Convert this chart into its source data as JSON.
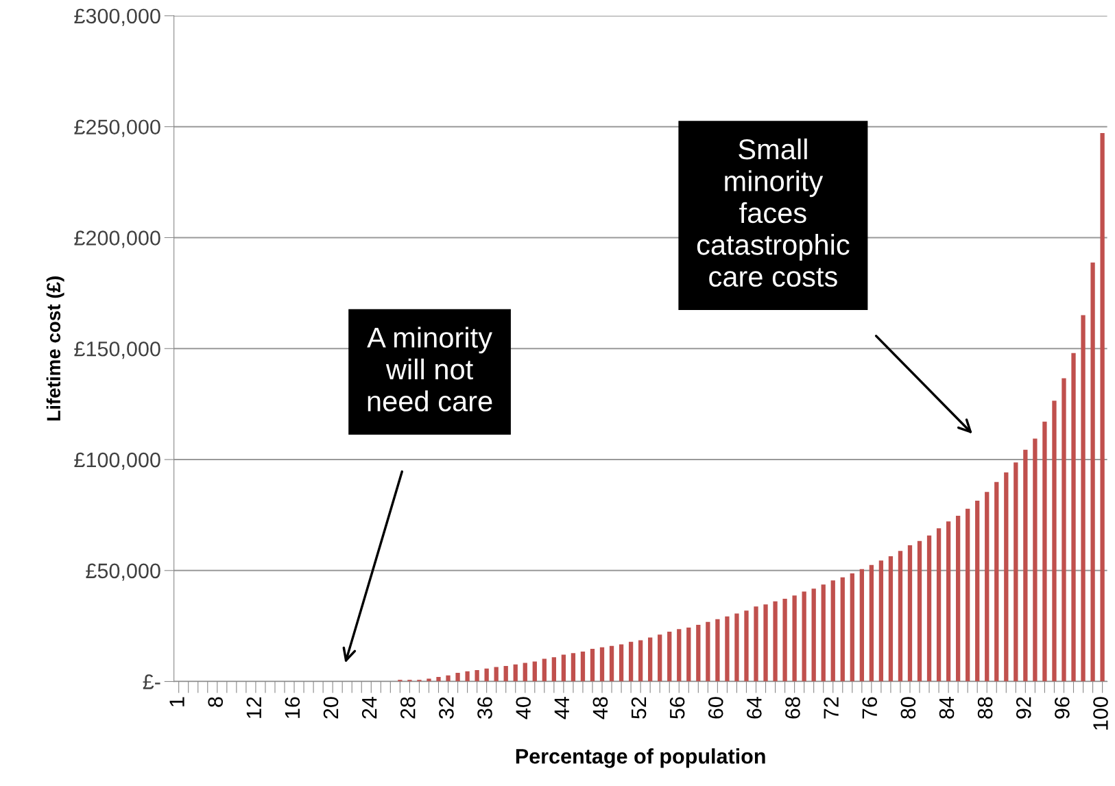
{
  "chart_data": {
    "type": "bar",
    "xlabel": "Percentage of population",
    "ylabel": "Lifetime cost (£)",
    "categories": [
      "1",
      null,
      null,
      null,
      "8",
      null,
      null,
      null,
      "12",
      null,
      null,
      null,
      "16",
      null,
      null,
      null,
      "20",
      null,
      null,
      null,
      "24",
      null,
      null,
      null,
      "28",
      null,
      null,
      null,
      "32",
      null,
      null,
      null,
      "36",
      null,
      null,
      null,
      "40",
      null,
      null,
      null,
      "44",
      null,
      null,
      null,
      "48",
      null,
      null,
      null,
      "52",
      null,
      null,
      null,
      "56",
      null,
      null,
      null,
      "60",
      null,
      null,
      null,
      "64",
      null,
      null,
      null,
      "68",
      null,
      null,
      null,
      "72",
      null,
      null,
      null,
      "76",
      null,
      null,
      null,
      "80",
      null,
      null,
      null,
      "84",
      null,
      null,
      null,
      "88",
      null,
      null,
      null,
      "92",
      null,
      null,
      null,
      "96",
      null,
      null,
      null,
      "100"
    ],
    "values": [
      0,
      0,
      0,
      0,
      0,
      0,
      0,
      0,
      0,
      0,
      0,
      0,
      0,
      0,
      0,
      0,
      0,
      0,
      0,
      0,
      0,
      0,
      0,
      700,
      700,
      700,
      1300,
      2000,
      2700,
      3900,
      4600,
      5100,
      5800,
      6500,
      7000,
      7700,
      8400,
      9000,
      10200,
      10900,
      12100,
      12800,
      13500,
      14700,
      15400,
      16000,
      16700,
      17900,
      18600,
      19800,
      21100,
      22400,
      23600,
      24300,
      25500,
      26800,
      28100,
      29300,
      30600,
      31900,
      33800,
      34700,
      36100,
      37300,
      38700,
      40500,
      41800,
      43700,
      45500,
      46900,
      48700,
      50600,
      52500,
      54500,
      56400,
      58800,
      61400,
      63300,
      65800,
      69000,
      72100,
      74700,
      77800,
      81500,
      85400,
      89900,
      94200,
      98700,
      104400,
      109400,
      117100,
      126500,
      136600,
      148000,
      165100,
      188800,
      247100
    ],
    "color": "#c0504d",
    "ylim": [
      0,
      300000
    ],
    "yticks": [
      {
        "value": 0,
        "label": "£-"
      },
      {
        "value": 50000,
        "label": "£50,000"
      },
      {
        "value": 100000,
        "label": "£100,000"
      },
      {
        "value": 150000,
        "label": "£150,000"
      },
      {
        "value": 200000,
        "label": "£200,000"
      },
      {
        "value": 250000,
        "label": "£250,000"
      },
      {
        "value": 300000,
        "label": "£300,000"
      }
    ],
    "grid": "y",
    "annotations": [
      "A minority\nwill not\nneed care",
      "Small\nminority\nfaces\ncatastrophic\ncare costs"
    ]
  }
}
